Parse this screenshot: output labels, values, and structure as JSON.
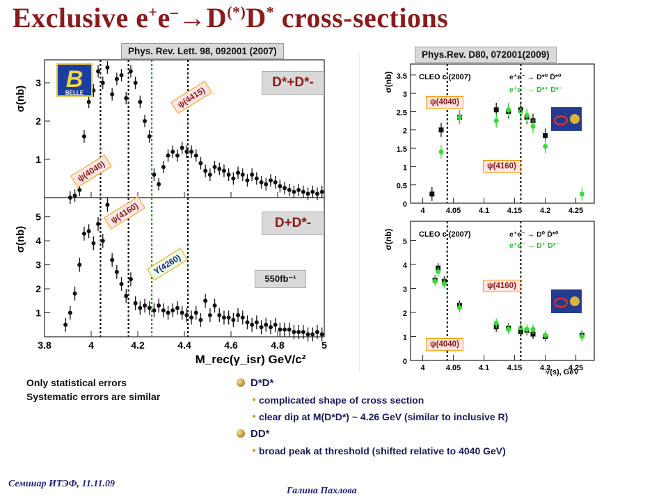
{
  "title": {
    "prefix": "Exclusive e",
    "sup1": "+",
    "mid1": "e",
    "sup2": "–",
    "mid2": "→D",
    "sup3": "(*)",
    "mid3": "D",
    "sup4": "*",
    "suffix": " cross-sections"
  },
  "refs": {
    "left": "Phys. Rev. Lett. 98, 092001 (2007)",
    "right": "Phys.Rev. D80, 072001(2009)"
  },
  "belle": {
    "logo_letter": "B",
    "logo_text": "BELLE",
    "top_channel": "D*+D*-",
    "bottom_channel": "D+D*-",
    "lumi": "550fb⁻¹",
    "ylabel_top": "σ(nb)",
    "ylabel_bottom": "σ(nb)",
    "xlabel": "M_rec(γ_isr)   GeV/c²",
    "xticks": [
      "3.8",
      "4",
      "4.2",
      "4.4",
      "4.6",
      "4.8",
      "5"
    ],
    "yticks_top": [
      "1",
      "2",
      "3"
    ],
    "yticks_bottom": [
      "1",
      "2",
      "3",
      "4",
      "5"
    ],
    "tags_top": [
      "ψ(4040)",
      "ψ(4415)"
    ],
    "tags_bottom": [
      "ψ(4160)",
      "Y(4260)"
    ]
  },
  "cleo": {
    "ylabel": "σ(nb)",
    "header": "CLEO c (2007)",
    "legend_top": [
      "e⁺e⁻ → D*⁰ D̄*⁰",
      "e⁺e⁻ → D*⁺ D*⁻"
    ],
    "legend_bottom": [
      "e⁺e⁻ → D⁰ D̄*⁰",
      "e⁺e⁻ → D⁺ D*⁻"
    ],
    "tags_top": [
      "ψ(4040)",
      "ψ(4160)"
    ],
    "tags_bottom": [
      "ψ(4160)",
      "ψ(4040)"
    ],
    "xticks": [
      "4",
      "4.05",
      "4.1",
      "4.15",
      "4.2",
      "4.25"
    ],
    "yticks_top": [
      "0",
      "0.5",
      "1",
      "1.5",
      "2",
      "2.5",
      "3",
      "3.5"
    ],
    "yticks_bottom": [
      "0",
      "1",
      "2",
      "3",
      "4",
      "5"
    ],
    "xlabel": "√(s), GeV"
  },
  "notes": {
    "line1": "Only statistical errors",
    "line2": "Systematic errors are similar"
  },
  "bullets": [
    {
      "heading": "D*D*",
      "items": [
        "complicated shape of cross section",
        "clear dip at M(D*D*) ~ 4.26 GeV (similar to inclusive R)"
      ]
    },
    {
      "heading": "DD*",
      "items": [
        "broad peak at threshold (shifted relative to 4040 GeV)"
      ]
    }
  ],
  "footer": {
    "left": "Семинар ИТЭФ, 11.11.09",
    "center": "Галина Пахлова"
  },
  "chart_data": [
    {
      "type": "scatter",
      "panel": "Belle D*+D*- (top)",
      "xlim": [
        3.8,
        5.0
      ],
      "ylim": [
        0,
        3.6
      ],
      "x": [
        3.91,
        3.93,
        3.95,
        3.97,
        3.99,
        4.01,
        4.03,
        4.05,
        4.07,
        4.09,
        4.11,
        4.13,
        4.15,
        4.17,
        4.19,
        4.21,
        4.23,
        4.25,
        4.27,
        4.29,
        4.31,
        4.33,
        4.35,
        4.37,
        4.39,
        4.41,
        4.43,
        4.45,
        4.47,
        4.49,
        4.51,
        4.53,
        4.55,
        4.57,
        4.59,
        4.61,
        4.63,
        4.65,
        4.67,
        4.69,
        4.71,
        4.73,
        4.75,
        4.77,
        4.79,
        4.81,
        4.83,
        4.85,
        4.87,
        4.89,
        4.91,
        4.93,
        4.95,
        4.97,
        4.99
      ],
      "y": [
        0.0,
        0.05,
        0.2,
        1.6,
        2.5,
        2.8,
        3.3,
        3.0,
        3.4,
        2.7,
        3.1,
        3.2,
        2.6,
        3.3,
        3.0,
        2.5,
        2.0,
        1.6,
        0.6,
        0.35,
        0.8,
        1.1,
        1.2,
        1.1,
        1.3,
        1.2,
        1.2,
        1.1,
        0.9,
        0.7,
        0.6,
        0.8,
        0.75,
        0.7,
        0.6,
        0.5,
        0.65,
        0.6,
        0.45,
        0.6,
        0.5,
        0.4,
        0.35,
        0.45,
        0.4,
        0.3,
        0.25,
        0.2,
        0.15,
        0.2,
        0.15,
        0.1,
        0.15,
        0.1,
        0.15
      ]
    },
    {
      "type": "scatter",
      "panel": "Belle D+D*- (bottom)",
      "xlim": [
        3.8,
        5.0
      ],
      "ylim": [
        0,
        5.8
      ],
      "x": [
        3.89,
        3.91,
        3.93,
        3.95,
        3.97,
        3.99,
        4.01,
        4.03,
        4.05,
        4.07,
        4.09,
        4.11,
        4.13,
        4.15,
        4.17,
        4.19,
        4.21,
        4.23,
        4.25,
        4.27,
        4.29,
        4.31,
        4.33,
        4.35,
        4.37,
        4.39,
        4.41,
        4.43,
        4.45,
        4.47,
        4.49,
        4.51,
        4.53,
        4.55,
        4.57,
        4.59,
        4.61,
        4.63,
        4.65,
        4.67,
        4.69,
        4.71,
        4.73,
        4.75,
        4.77,
        4.79,
        4.81,
        4.83,
        4.85,
        4.87,
        4.89,
        4.91,
        4.93,
        4.95,
        4.97,
        4.99
      ],
      "y": [
        0.5,
        1.0,
        1.8,
        3.0,
        4.3,
        4.4,
        3.9,
        4.7,
        4.0,
        5.5,
        3.2,
        2.7,
        2.2,
        1.7,
        2.4,
        1.4,
        1.2,
        1.3,
        1.2,
        1.1,
        1.3,
        1.1,
        1.0,
        1.1,
        1.2,
        1.0,
        0.9,
        0.8,
        1.0,
        0.7,
        1.5,
        0.9,
        1.3,
        0.9,
        0.8,
        0.8,
        0.7,
        0.9,
        0.8,
        0.6,
        0.5,
        0.6,
        0.4,
        0.5,
        0.4,
        0.5,
        0.3,
        0.3,
        0.3,
        0.2,
        0.2,
        0.2,
        0.1,
        0.1,
        0.2,
        0.1
      ]
    },
    {
      "type": "scatter",
      "panel": "CLEO D*D* (top right)",
      "xlim": [
        3.98,
        4.28
      ],
      "ylim": [
        0,
        3.8
      ],
      "series": [
        {
          "name": "e⁺e⁻ → D*⁰ D̄*⁰",
          "color": "#111111",
          "x": [
            4.015,
            4.03,
            4.06,
            4.12,
            4.14,
            4.16,
            4.17,
            4.18,
            4.2
          ],
          "y": [
            0.25,
            2.0,
            2.35,
            2.55,
            2.5,
            2.55,
            2.35,
            2.25,
            1.85
          ]
        },
        {
          "name": "e⁺e⁻ → D*⁺ D*⁻",
          "color": "#33dd33",
          "x": [
            4.03,
            4.06,
            4.12,
            4.14,
            4.16,
            4.17,
            4.18,
            4.2,
            4.26
          ],
          "y": [
            1.4,
            2.35,
            2.25,
            2.55,
            2.5,
            2.4,
            2.1,
            1.55,
            0.25
          ]
        }
      ]
    },
    {
      "type": "scatter",
      "panel": "CLEO DD* (bottom right)",
      "xlim": [
        3.98,
        4.28
      ],
      "ylim": [
        0,
        5.8
      ],
      "series": [
        {
          "name": "e⁺e⁻ → D⁰ D̄*⁰",
          "color": "#111111",
          "x": [
            4.02,
            4.025,
            4.035,
            4.06,
            4.12,
            4.14,
            4.16,
            4.17,
            4.18,
            4.2,
            4.26
          ],
          "y": [
            3.35,
            3.85,
            3.3,
            2.3,
            1.4,
            1.35,
            1.2,
            1.25,
            1.1,
            1.0,
            1.05
          ]
        },
        {
          "name": "e⁺e⁻ → D⁺ D*⁻",
          "color": "#33dd33",
          "x": [
            4.02,
            4.025,
            4.035,
            4.06,
            4.12,
            4.14,
            4.16,
            4.17,
            4.18,
            4.2,
            4.26
          ],
          "y": [
            3.3,
            3.7,
            3.2,
            2.2,
            1.55,
            1.3,
            1.35,
            1.3,
            1.3,
            1.05,
            1.0
          ]
        }
      ]
    }
  ]
}
